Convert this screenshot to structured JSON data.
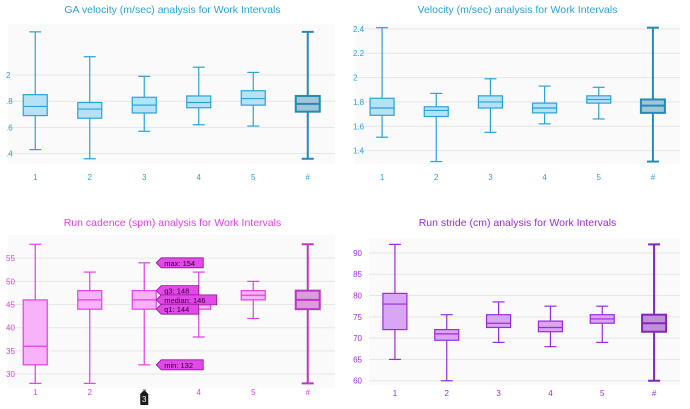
{
  "chart_data": [
    {
      "type": "box",
      "title": "GA velocity (m/sec) analysis for Work Intervals",
      "color": "#2aa3d9",
      "fill": "#b6e2f5",
      "categories": [
        "1",
        "2",
        "3",
        "4",
        "5",
        "#"
      ],
      "y_ticks": [
        ".4",
        ".6",
        ".8",
        "2"
      ],
      "boxes": [
        {
          "min": 1.43,
          "q1": 1.69,
          "median": 1.76,
          "q3": 1.85,
          "max": 2.33
        },
        {
          "min": 1.36,
          "q1": 1.67,
          "median": 1.74,
          "q3": 1.79,
          "max": 2.14
        },
        {
          "min": 1.57,
          "q1": 1.71,
          "median": 1.77,
          "q3": 1.83,
          "max": 1.99
        },
        {
          "min": 1.62,
          "q1": 1.75,
          "median": 1.79,
          "q3": 1.84,
          "max": 2.06
        },
        {
          "min": 1.61,
          "q1": 1.77,
          "median": 1.82,
          "q3": 1.88,
          "max": 2.02
        },
        {
          "min": 1.36,
          "q1": 1.72,
          "median": 1.78,
          "q3": 1.84,
          "max": 2.33
        }
      ]
    },
    {
      "type": "box",
      "title": "Velocity (m/sec) analysis for Work Intervals",
      "color": "#2aa3d9",
      "fill": "#b6e2f5",
      "categories": [
        "1",
        "2",
        "3",
        "4",
        "5",
        "#"
      ],
      "y_ticks": [
        "1.4",
        "1.6",
        "1.8",
        "2",
        "2.2",
        "2.4"
      ],
      "boxes": [
        {
          "min": 1.51,
          "q1": 1.69,
          "median": 1.75,
          "q3": 1.83,
          "max": 2.41
        },
        {
          "min": 1.31,
          "q1": 1.68,
          "median": 1.73,
          "q3": 1.76,
          "max": 1.87
        },
        {
          "min": 1.55,
          "q1": 1.75,
          "median": 1.8,
          "q3": 1.85,
          "max": 1.99
        },
        {
          "min": 1.62,
          "q1": 1.71,
          "median": 1.75,
          "q3": 1.79,
          "max": 1.93
        },
        {
          "min": 1.66,
          "q1": 1.79,
          "median": 1.82,
          "q3": 1.85,
          "max": 1.92
        },
        {
          "min": 1.31,
          "q1": 1.71,
          "median": 1.77,
          "q3": 1.82,
          "max": 2.41
        }
      ]
    },
    {
      "type": "box",
      "title": "Run cadence (spm) analysis for Work Intervals",
      "color": "#e040e8",
      "fill": "#f7b2f9",
      "categories": [
        "1",
        "2",
        "3",
        "4",
        "5",
        "#"
      ],
      "y_ticks": [
        "30",
        "35",
        "40",
        "45",
        "50",
        "55"
      ],
      "boxes": [
        {
          "min": 128,
          "q1": 132,
          "median": 136,
          "q3": 146,
          "max": 158
        },
        {
          "min": 128,
          "q1": 144,
          "median": 146,
          "q3": 148,
          "max": 152
        },
        {
          "min": 132,
          "q1": 144,
          "median": 146,
          "q3": 148,
          "max": 154
        },
        {
          "min": 138,
          "q1": 144,
          "median": 145,
          "q3": 146,
          "max": 152
        },
        {
          "min": 142,
          "q1": 146,
          "median": 147,
          "q3": 148,
          "max": 150
        },
        {
          "min": 128,
          "q1": 144,
          "median": 146,
          "q3": 148,
          "max": 158
        }
      ],
      "tooltip": {
        "labels": [
          "max: 154",
          "q3: 148",
          "median: 146",
          "q1: 144",
          "min: 132"
        ],
        "values": [
          154,
          148,
          146,
          144,
          132
        ],
        "category_index": 2
      },
      "cursor_label": "3"
    },
    {
      "type": "box",
      "title": "Run stride (cm) analysis for Work Intervals",
      "color": "#9a2be0",
      "fill": "#d9a6f5",
      "categories": [
        "1",
        "2",
        "3",
        "4",
        "5",
        "#"
      ],
      "y_ticks": [
        "60",
        "65",
        "70",
        "75",
        "80",
        "85",
        "90"
      ],
      "boxes": [
        {
          "min": 65,
          "q1": 72,
          "median": 78,
          "q3": 80.5,
          "max": 92
        },
        {
          "min": 60,
          "q1": 69.5,
          "median": 71,
          "q3": 72,
          "max": 75.5
        },
        {
          "min": 69,
          "q1": 72.5,
          "median": 73.5,
          "q3": 75.5,
          "max": 78.5
        },
        {
          "min": 68,
          "q1": 71.5,
          "median": 72.5,
          "q3": 74,
          "max": 77.5
        },
        {
          "min": 69,
          "q1": 73.5,
          "median": 74.5,
          "q3": 75.5,
          "max": 77.5
        },
        {
          "min": 60,
          "q1": 71.5,
          "median": 73.5,
          "q3": 75.5,
          "max": 92
        }
      ]
    }
  ]
}
